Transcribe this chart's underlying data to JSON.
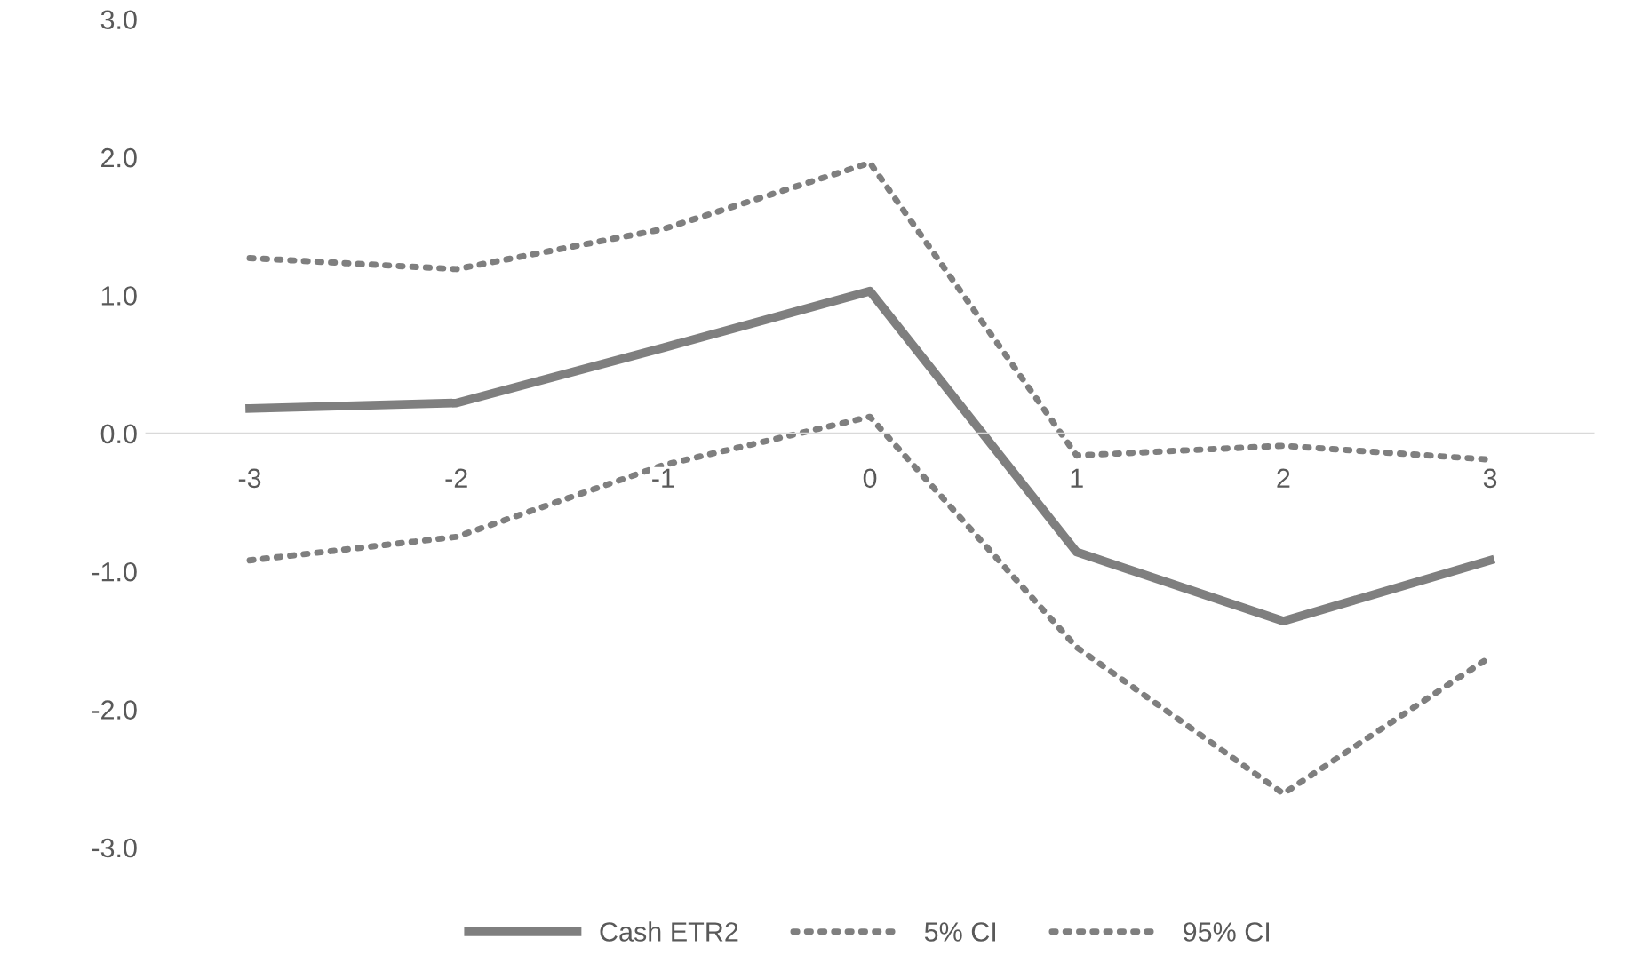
{
  "chart_data": {
    "type": "line",
    "categories": [
      "-3",
      "-2",
      "-1",
      "0",
      "1",
      "2",
      "3"
    ],
    "series": [
      {
        "name": "Cash ETR2",
        "color": "#7f7f7f",
        "line_style": "solid",
        "values": [
          0.18,
          0.22,
          0.62,
          1.03,
          -0.86,
          -1.36,
          -0.92
        ]
      },
      {
        "name": "5% CI",
        "color": "#7f7f7f",
        "line_style": "dotted",
        "values": [
          -0.92,
          -0.75,
          -0.23,
          0.12,
          -1.55,
          -2.61,
          -1.62
        ]
      },
      {
        "name": "95% CI",
        "color": "#7f7f7f",
        "line_style": "dotted",
        "values": [
          1.27,
          1.19,
          1.48,
          1.96,
          -0.16,
          -0.09,
          -0.19
        ]
      }
    ],
    "ylim": [
      -3,
      3
    ],
    "yticks": [
      {
        "value": -3,
        "label": "-3.0"
      },
      {
        "value": -2,
        "label": "-2.0"
      },
      {
        "value": -1,
        "label": "-1.0"
      },
      {
        "value": 0,
        "label": "0.0"
      },
      {
        "value": 1,
        "label": "1.0"
      },
      {
        "value": 2,
        "label": "2.0"
      },
      {
        "value": 3,
        "label": "3.0"
      }
    ],
    "grid": false,
    "legend": "bottom",
    "marker": "none"
  }
}
